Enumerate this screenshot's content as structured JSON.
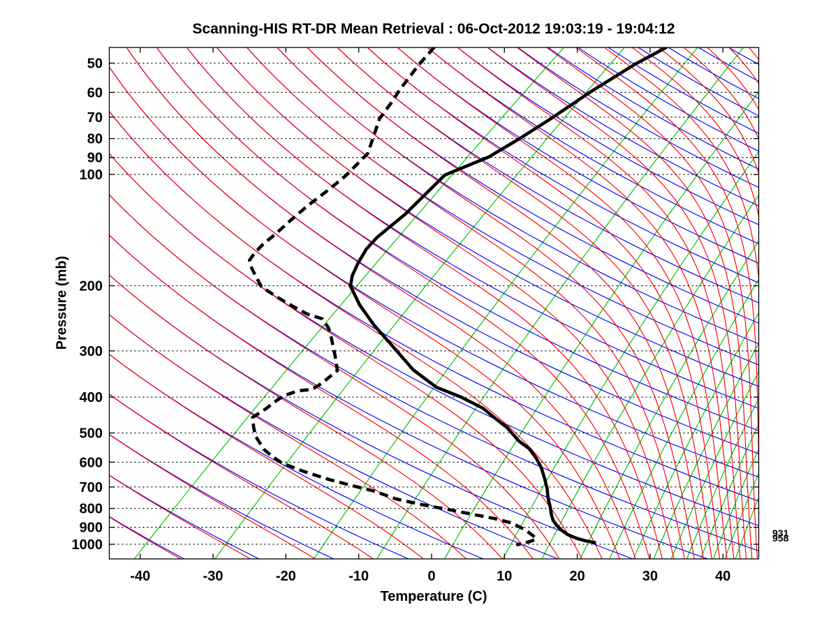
{
  "title": "Scanning-HIS RT-DR Mean Retrieval : 06-Oct-2012 19:03:19 - 19:04:12",
  "axes": {
    "x_label": "Temperature (C)",
    "y_label": "Pressure (mb)",
    "x_ticks": [
      -40,
      -30,
      -20,
      -10,
      0,
      10,
      20,
      30,
      40
    ],
    "y_ticks": [
      50,
      60,
      70,
      80,
      90,
      100,
      200,
      300,
      400,
      500,
      600,
      700,
      800,
      900,
      1000
    ]
  },
  "side_annotations": [
    {
      "label": "931",
      "pressure_mb": 931
    },
    {
      "label": "958",
      "pressure_mb": 958
    }
  ],
  "chart_data": {
    "type": "line",
    "subtype": "skew_t_log_p_sounding",
    "title": "Scanning-HIS RT-DR Mean Retrieval : 06-Oct-2012 19:03:19 - 19:04:12",
    "xlabel": "Temperature (C)",
    "ylabel": "Pressure (mb)",
    "xlim_c_at_surface": [
      -44.3,
      44.9
    ],
    "ylim_mb": [
      45.4,
      1095
    ],
    "y_scale": "log-pressure-inverted",
    "grid": "dotted horizontal isobars at labeled pressures",
    "legend_position": "none",
    "background_families": {
      "isobars_mb": [
        50,
        60,
        70,
        80,
        90,
        100,
        200,
        300,
        400,
        500,
        600,
        700,
        800,
        900,
        1000
      ],
      "dry_adiabats": {
        "color": "#0000ff",
        "theta_c_from": -80,
        "theta_c_to": 300,
        "theta_c_step": 10
      },
      "moist_adiabats": {
        "color": "#ff0000",
        "theta_e_c_from": -70,
        "theta_e_c_to": 300,
        "theta_e_c_step": 10
      },
      "mixing_ratio_lines": {
        "color": "#00bf00",
        "w_g_per_kg": [
          0.1,
          0.3,
          1,
          2,
          4,
          7,
          10,
          14,
          18,
          22,
          26,
          30,
          34,
          38,
          42,
          46,
          50
        ]
      }
    },
    "series": [
      {
        "name": "temperature",
        "style": "solid",
        "color": "#000000",
        "points_p_mb_t_c": [
          [
            45.3,
            -53.1
          ],
          [
            50.3,
            -54.6
          ],
          [
            59.9,
            -56.1
          ],
          [
            70,
            -57.0
          ],
          [
            79.8,
            -58.0
          ],
          [
            89.7,
            -59.2
          ],
          [
            100.4,
            -62.2
          ],
          [
            128.1,
            -61.1
          ],
          [
            147.9,
            -61.1
          ],
          [
            159.2,
            -60.6
          ],
          [
            173.7,
            -59.4
          ],
          [
            187.8,
            -58.1
          ],
          [
            200.4,
            -56.6
          ],
          [
            225.3,
            -52.2
          ],
          [
            254.6,
            -47.0
          ],
          [
            300.2,
            -39.4
          ],
          [
            337.5,
            -34.0
          ],
          [
            376.3,
            -27.9
          ],
          [
            399.9,
            -22.9
          ],
          [
            428.7,
            -18.0
          ],
          [
            457.6,
            -14.5
          ],
          [
            484.2,
            -11.4
          ],
          [
            525.7,
            -7.6
          ],
          [
            551.4,
            -4.9
          ],
          [
            585.8,
            -2.3
          ],
          [
            620.2,
            -0.1
          ],
          [
            661.9,
            2.1
          ],
          [
            706.3,
            4.2
          ],
          [
            753.9,
            6.1
          ],
          [
            794.3,
            7.8
          ],
          [
            829.8,
            9.1
          ],
          [
            862.7,
            10.4
          ],
          [
            889.2,
            11.7
          ],
          [
            916.6,
            13.2
          ],
          [
            940.9,
            14.7
          ],
          [
            961.7,
            16.4
          ],
          [
            978.5,
            18.2
          ],
          [
            991.3,
            20.0
          ]
        ]
      },
      {
        "name": "dewpoint",
        "style": "dashed",
        "color": "#000000",
        "points_p_mb_t_c": [
          [
            45.3,
            -85.0
          ],
          [
            50.5,
            -84.2
          ],
          [
            59.2,
            -82.6
          ],
          [
            64.2,
            -81.6
          ],
          [
            70.6,
            -80.6
          ],
          [
            87.7,
            -76.4
          ],
          [
            100.9,
            -75.7
          ],
          [
            110,
            -75.7
          ],
          [
            121.6,
            -75.9
          ],
          [
            133.8,
            -75.8
          ],
          [
            144.6,
            -75.6
          ],
          [
            154.4,
            -75.6
          ],
          [
            162.6,
            -75.3
          ],
          [
            170.5,
            -74.8
          ],
          [
            179.5,
            -73.1
          ],
          [
            190.2,
            -70.9
          ],
          [
            201.3,
            -68.7
          ],
          [
            215.8,
            -64.5
          ],
          [
            226.3,
            -61.4
          ],
          [
            238.4,
            -57.9
          ],
          [
            245.7,
            -55.0
          ],
          [
            260.2,
            -52.6
          ],
          [
            271.2,
            -51.2
          ],
          [
            309,
            -47.1
          ],
          [
            338.9,
            -44.3
          ],
          [
            366.2,
            -44.3
          ],
          [
            381.2,
            -44.6
          ],
          [
            384.6,
            -46.3
          ],
          [
            396.2,
            -47.4
          ],
          [
            414,
            -47.7
          ],
          [
            428.7,
            -47.7
          ],
          [
            454.1,
            -48.1
          ],
          [
            484.2,
            -46.2
          ],
          [
            511,
            -44.5
          ],
          [
            555,
            -41.1
          ],
          [
            579.5,
            -38.8
          ],
          [
            602.6,
            -36.5
          ],
          [
            633.6,
            -32.3
          ],
          [
            664,
            -27.9
          ],
          [
            690.6,
            -23.6
          ],
          [
            718.2,
            -19.1
          ],
          [
            753.9,
            -14.8
          ],
          [
            780.8,
            -10.4
          ],
          [
            805.8,
            -5.8
          ],
          [
            829.8,
            -1.7
          ],
          [
            851.2,
            1.9
          ],
          [
            876.7,
            5.2
          ],
          [
            916.6,
            8.3
          ],
          [
            948.6,
            10.2
          ],
          [
            968,
            11.2
          ],
          [
            983.8,
            10.7
          ],
          [
            995.9,
            10.0
          ],
          [
            1004,
            9.4
          ]
        ]
      }
    ]
  }
}
